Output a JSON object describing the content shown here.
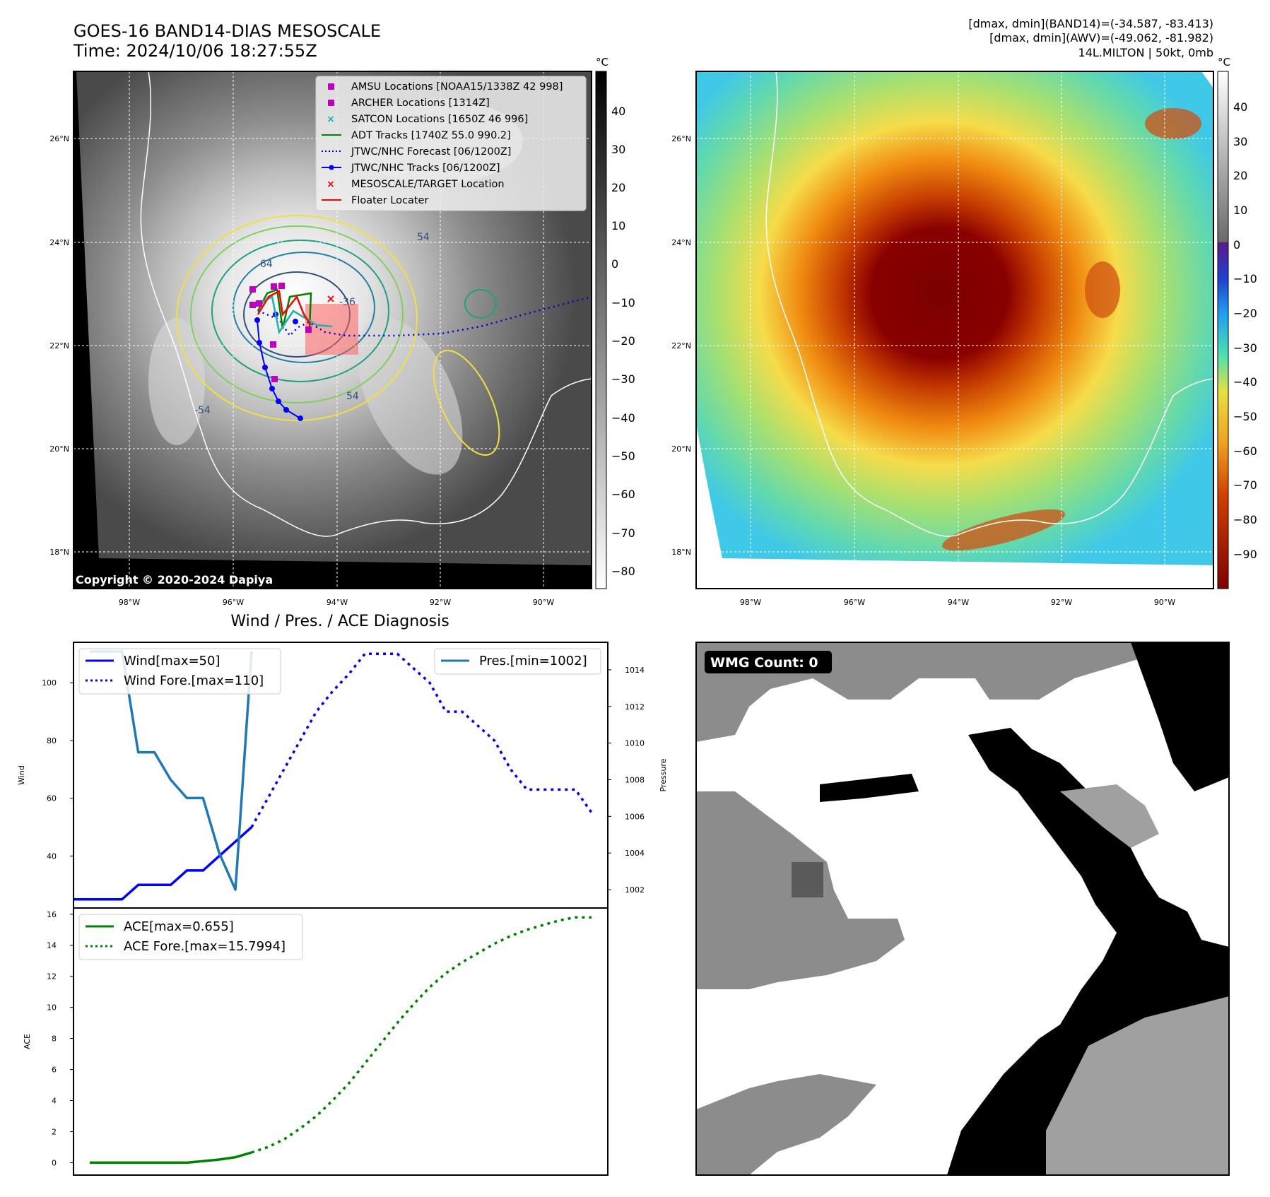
{
  "header": {
    "title_line1": "GOES-16 BAND14-DIAS MESOSCALE",
    "title_line2": "Time: 2024/10/06 18:27:55Z",
    "info_line1": "[dmax, dmin](BAND14)=(-34.587, -83.413)",
    "info_line2": "[dmax, dmin](AWV)=(-49.062, -81.982)",
    "info_line3": "14L.MILTON | 50kt, 0mb"
  },
  "map_axes": {
    "lon_labels": [
      "98°W",
      "96°W",
      "94°W",
      "92°W",
      "90°W"
    ],
    "lat_labels": [
      "26°N",
      "24°N",
      "22°N",
      "20°N",
      "18°N"
    ]
  },
  "left_map": {
    "copyright": "Copyright © 2020-2024 Dapiya",
    "contour_labels": [
      "64",
      "54",
      "-54",
      "54",
      "-36"
    ],
    "legend": [
      {
        "label": "AMSU Locations [NOAA15/1338Z 42 998]",
        "color": "#c000c0",
        "marker": "square"
      },
      {
        "label": "ARCHER Locations [1314Z]",
        "color": "#c000c0",
        "marker": "square"
      },
      {
        "label": "SATCON Locations [1650Z 46 996]",
        "color": "#20b2aa",
        "marker": "x"
      },
      {
        "label": "ADT Tracks [1740Z 55.0 990.2]",
        "color": "#008000",
        "marker": "line"
      },
      {
        "label": "JTWC/NHC Forecast [06/1200Z]",
        "color": "#0000cc",
        "marker": "dotted"
      },
      {
        "label": "JTWC/NHC Tracks [06/1200Z]",
        "color": "#0000ff",
        "marker": "line-dot"
      },
      {
        "label": "MESOSCALE/TARGET Location",
        "color": "#ff0000",
        "marker": "x"
      },
      {
        "label": "Floater Locater",
        "color": "#ff0000",
        "marker": "line"
      }
    ]
  },
  "colorbars": {
    "left_unit": "°C",
    "left_ticks": [
      "40",
      "30",
      "20",
      "10",
      "0",
      "−10",
      "−20",
      "−30",
      "−40",
      "−50",
      "−60",
      "−70",
      "−80"
    ],
    "right_unit": "°C",
    "right_ticks": [
      "40",
      "30",
      "20",
      "10",
      "0",
      "−10",
      "−20",
      "−30",
      "−40",
      "−50",
      "−60",
      "−70",
      "−80",
      "−90"
    ]
  },
  "wmg": {
    "badge": "WMG Count: 0"
  },
  "colors": {
    "wind": "#0000ff",
    "pres": "#1f77b4",
    "ace": "#008000"
  },
  "chart_data": [
    {
      "type": "line",
      "title": "Wind / Pres. / ACE Diagnosis",
      "ylabel": "Wind",
      "ylim": [
        22,
        114
      ],
      "yticks": [
        "40",
        "60",
        "80",
        "100"
      ],
      "y2label": "Pressure",
      "y2lim": [
        1001,
        1015.5
      ],
      "y2ticks": [
        "1002",
        "1004",
        "1006",
        "1008",
        "1010",
        "1012",
        "1014"
      ],
      "xlim": [
        0,
        33
      ],
      "series": [
        {
          "name": "Wind[max=50]",
          "axis": "left",
          "style": "solid",
          "x": [
            0,
            1,
            2,
            3,
            4,
            5,
            6,
            7,
            8,
            9,
            10,
            11
          ],
          "y": [
            25,
            25,
            25,
            25,
            30,
            30,
            30,
            35,
            35,
            40,
            45,
            50
          ]
        },
        {
          "name": "Wind Fore.[max=110]",
          "axis": "left",
          "style": "dotted",
          "x": [
            11,
            12,
            13,
            14,
            15,
            16,
            17,
            18,
            19,
            20,
            21,
            22,
            23,
            24,
            25,
            26,
            27,
            28,
            29,
            30,
            31,
            32
          ],
          "y": [
            50,
            60,
            70,
            80,
            90,
            97,
            103,
            110,
            110,
            110,
            105,
            100,
            90,
            90,
            85,
            80,
            70,
            63,
            63,
            63,
            63,
            55
          ]
        },
        {
          "name": "Pres.[min=1002]",
          "axis": "right",
          "style": "solid",
          "x": [
            1,
            3,
            4,
            5,
            6,
            7,
            8,
            9,
            10,
            11
          ],
          "y": [
            1015,
            1015,
            1009.5,
            1009.5,
            1008,
            1007,
            1007,
            1004,
            1002,
            1015
          ]
        }
      ]
    },
    {
      "type": "line",
      "ylabel": "ACE",
      "ylim": [
        -0.8,
        16.4
      ],
      "yticks": [
        "0",
        "2",
        "4",
        "6",
        "8",
        "10",
        "12",
        "14",
        "16"
      ],
      "xlim": [
        0,
        33
      ],
      "series": [
        {
          "name": "ACE[max=0.655]",
          "style": "solid",
          "x": [
            1,
            2,
            3,
            4,
            5,
            6,
            7,
            8,
            9,
            10,
            11
          ],
          "y": [
            0,
            0,
            0,
            0,
            0,
            0,
            0,
            0.1,
            0.2,
            0.35,
            0.655
          ]
        },
        {
          "name": "ACE Fore.[max=15.7994]",
          "style": "dotted",
          "x": [
            11,
            12,
            13,
            14,
            15,
            16,
            17,
            18,
            19,
            20,
            21,
            22,
            23,
            24,
            25,
            26,
            27,
            28,
            29,
            30,
            31,
            32
          ],
          "y": [
            0.655,
            1.0,
            1.5,
            2.2,
            3.0,
            4.0,
            5.1,
            6.4,
            7.7,
            9.0,
            10.2,
            11.3,
            12.2,
            12.9,
            13.5,
            14.1,
            14.6,
            15.0,
            15.3,
            15.6,
            15.8,
            15.8
          ]
        }
      ]
    }
  ]
}
